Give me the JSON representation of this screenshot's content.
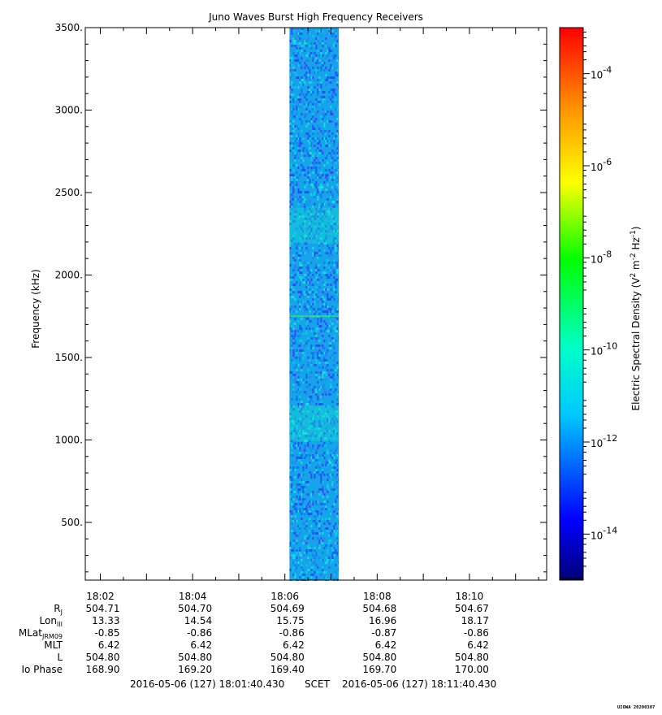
{
  "chart_data": {
    "type": "heatmap",
    "title": "Juno Waves Burst High Frequency Receivers",
    "ylabel": "Frequency (kHz)",
    "colorbar_label": "Electric Spectral Density (V2 m-2 Hz-1)",
    "colorbar_label_parts": {
      "base": "Electric Spectral Density (V",
      "sup1": "2",
      "mid1": " m",
      "sup2": "-2",
      "mid2": " Hz",
      "sup3": "-1",
      "end": ")"
    },
    "x_tick_labels": [
      "18:02",
      "18:04",
      "18:06",
      "18:08",
      "18:10"
    ],
    "x_range": [
      "18:01:40.430",
      "18:11:40.430"
    ],
    "y_ticks": [
      500,
      1000,
      1500,
      2000,
      2500,
      3000,
      3500
    ],
    "y_tick_labels": [
      "500.",
      "1000.",
      "1500.",
      "2000.",
      "2500.",
      "3000.",
      "3500."
    ],
    "ylim": [
      150,
      3500
    ],
    "colorbar_log_range": [
      -15,
      -3
    ],
    "colorbar_ticks": [
      {
        "base": "10",
        "exp": "-4",
        "value": -4
      },
      {
        "base": "10",
        "exp": "-6",
        "value": -6
      },
      {
        "base": "10",
        "exp": "-8",
        "value": -8
      },
      {
        "base": "10",
        "exp": "-10",
        "value": -10
      },
      {
        "base": "10",
        "exp": "-12",
        "value": -12
      },
      {
        "base": "10",
        "exp": "-14",
        "value": -14
      }
    ],
    "data_block": {
      "start": "18:06:06",
      "end": "18:07:10",
      "fmin": 150,
      "fmax": 3500,
      "typical_log_density": -12,
      "enhanced_bands_khz": [
        1100,
        1750,
        2300
      ]
    },
    "ephemeris": {
      "rows": [
        {
          "name": "Rj",
          "main": "R",
          "sub": "J",
          "values": [
            "504.71",
            "504.70",
            "504.69",
            "504.68",
            "504.67"
          ]
        },
        {
          "name": "LonIII",
          "main": "Lon",
          "sub": "III",
          "values": [
            "13.33",
            "14.54",
            "15.75",
            "16.96",
            "18.17"
          ]
        },
        {
          "name": "MLatJRM09",
          "main": "MLat",
          "sub": "JRM09",
          "values": [
            "-0.85",
            "-0.86",
            "-0.86",
            "-0.87",
            "-0.86"
          ]
        },
        {
          "name": "MLT",
          "main": "MLT",
          "sub": "",
          "values": [
            "6.42",
            "6.42",
            "6.42",
            "6.42",
            "6.42"
          ]
        },
        {
          "name": "L",
          "main": "L",
          "sub": "",
          "values": [
            "504.80",
            "504.80",
            "504.80",
            "504.80",
            "504.80"
          ]
        },
        {
          "name": "Io Phase",
          "main": "Io Phase",
          "sub": "",
          "values": [
            "168.90",
            "169.20",
            "169.40",
            "169.70",
            "170.00"
          ]
        }
      ]
    },
    "time_span": {
      "start": "2016-05-06 (127) 18:01:40.430",
      "mid": "SCET",
      "end": "2016-05-06 (127) 18:11:40.430"
    },
    "stamp": "UIOWA 20200307"
  }
}
